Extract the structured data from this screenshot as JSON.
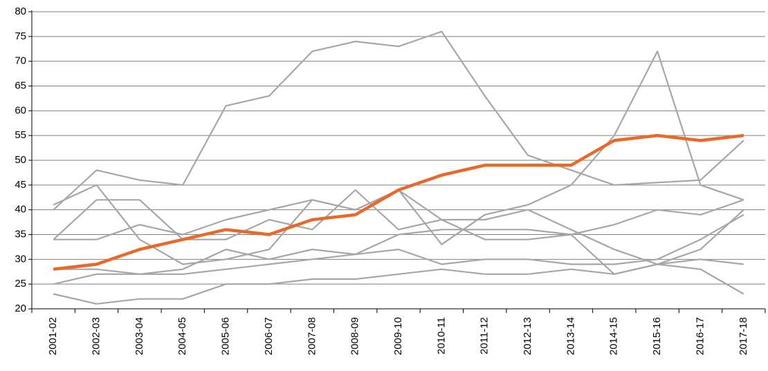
{
  "chart_data": {
    "type": "line",
    "categories": [
      "2001-02",
      "2002-03",
      "2003-04",
      "2004-05",
      "2005-06",
      "2006-07",
      "2007-08",
      "2008-09",
      "2009-10",
      "2010-11",
      "2011-12",
      "2012-13",
      "2013-14",
      "2014-15",
      "2015-16",
      "2016-17",
      "2017-18"
    ],
    "ylim": [
      20,
      80
    ],
    "yticks": [
      20,
      25,
      30,
      35,
      40,
      45,
      50,
      55,
      60,
      65,
      70,
      75,
      80
    ],
    "grid": true,
    "series": [
      {
        "color": "#a6a6a6",
        "values": [
          40,
          48,
          46,
          45,
          61,
          63,
          72,
          74,
          73,
          76,
          63,
          51,
          48,
          45,
          45.5,
          46,
          54
        ]
      },
      {
        "color": "#a6a6a6",
        "values": [
          41,
          45,
          34,
          29,
          30,
          32,
          42,
          40,
          44,
          33,
          39,
          41,
          45,
          55,
          72,
          45,
          42
        ]
      },
      {
        "color": "#a6a6a6",
        "values": [
          34,
          42,
          42,
          34,
          34,
          38,
          36,
          44,
          36,
          38,
          38,
          40,
          36,
          32,
          29,
          28,
          23
        ]
      },
      {
        "color": "#a6a6a6",
        "values": [
          34,
          34,
          37,
          35,
          38,
          40,
          42,
          40,
          44,
          38,
          34,
          34,
          35,
          37,
          40,
          39,
          42
        ]
      },
      {
        "color": "#a6a6a6",
        "values": [
          28,
          28,
          27,
          28,
          32,
          30,
          32,
          31,
          32,
          29,
          30,
          30,
          29,
          29,
          30,
          34,
          39
        ]
      },
      {
        "color": "#a6a6a6",
        "values": [
          25,
          27,
          27,
          27,
          28,
          29,
          30,
          31,
          35,
          36,
          36,
          36,
          35,
          27,
          29,
          32,
          40
        ]
      },
      {
        "color": "#a6a6a6",
        "values": [
          23,
          21,
          22,
          22,
          25,
          25,
          26,
          26,
          27,
          28,
          27,
          27,
          28,
          27,
          29,
          30,
          29
        ]
      },
      {
        "color": "#e8692c",
        "values": [
          28,
          29,
          32,
          34,
          36,
          35,
          38,
          39,
          44,
          47,
          49,
          49,
          49,
          54,
          55,
          54,
          55
        ]
      }
    ]
  }
}
